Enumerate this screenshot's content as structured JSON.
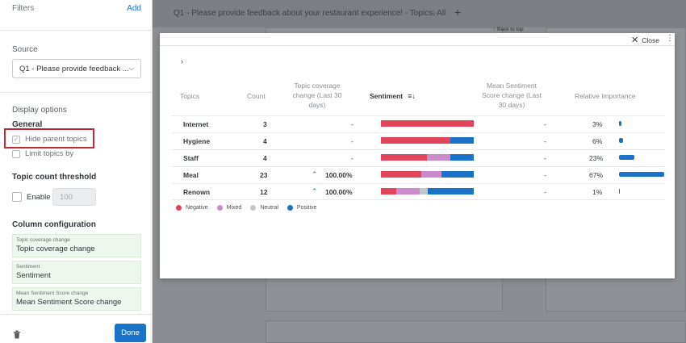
{
  "panel": {
    "title": "Filters",
    "add_label": "Add",
    "source_label": "Source",
    "source_value": "Q1 - Please provide feedback ...",
    "display_options": "Display options",
    "general": "General",
    "hide_parent_topics": "Hide parent topics",
    "limit_topics_by": "Limit topics by",
    "topic_count_threshold": "Topic count threshold",
    "enable": "Enable",
    "threshold_placeholder": "100",
    "column_configuration": "Column configuration",
    "columns": [
      {
        "label": "Topic coverage change",
        "value": "Topic coverage change"
      },
      {
        "label": "Sentiment",
        "value": "Sentiment"
      },
      {
        "label": "Mean Sentiment Score change",
        "value": "Mean Sentiment Score change"
      }
    ],
    "done_label": "Done"
  },
  "background": {
    "title": "Q1 - Please provide feedback about your restaurant experience! - Topics: All",
    "back_to_top": "↑ Back to top"
  },
  "modal": {
    "close_label": "Close",
    "headers": {
      "topics": "Topics",
      "count": "Count",
      "coverage": [
        "Topic coverage",
        "change (Last 30",
        "days)"
      ],
      "sentiment": "Sentiment",
      "mean": [
        "Mean Sentiment",
        "Score change (Last",
        "30 days)"
      ],
      "importance": "Relative Importance"
    },
    "rows": [
      {
        "topic": "Internet",
        "count": "3",
        "coverage": "-",
        "mean": "-",
        "importance": "3%"
      },
      {
        "topic": "Hygiene",
        "count": "4",
        "coverage": "-",
        "mean": "-",
        "importance": "6%"
      },
      {
        "topic": "Staff",
        "count": "4",
        "coverage": "-",
        "mean": "-",
        "importance": "23%"
      },
      {
        "topic": "Meal",
        "count": "23",
        "coverage": "100.00%",
        "mean": "-",
        "importance": "67%"
      },
      {
        "topic": "Renown",
        "count": "12",
        "coverage": "100.00%",
        "mean": "-",
        "importance": "1%"
      }
    ],
    "legend": [
      "Negative",
      "Mixed",
      "Neutral",
      "Positive"
    ]
  },
  "colors": {
    "negative": "#e0455a",
    "mixed": "#cc8ccb",
    "neutral": "#c4c7ca",
    "positive": "#1a73c9",
    "accent": "#1a73c9",
    "highlight": "#c02a33"
  }
}
